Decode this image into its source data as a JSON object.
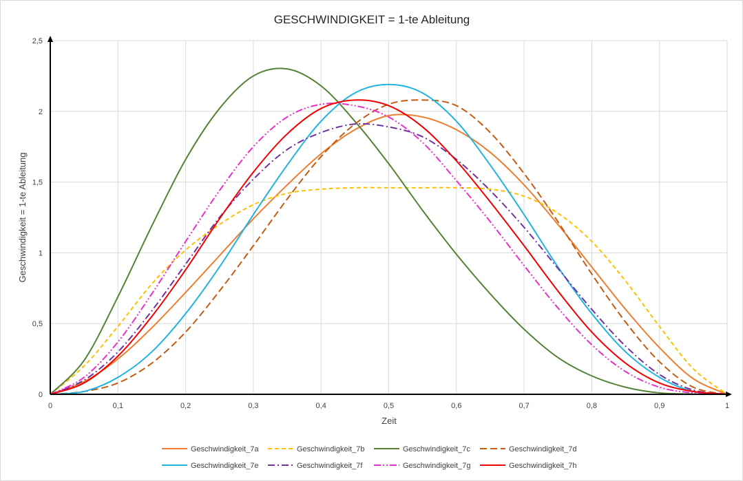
{
  "chart_data": {
    "type": "line",
    "title": "GESCHWINDIGKEIT = 1-te Ableitung",
    "xlabel": "Zeit",
    "ylabel": "Geschwindigkeit = 1-te Ableitung",
    "xlim": [
      0,
      1
    ],
    "ylim": [
      0,
      2.5
    ],
    "x_ticks": [
      0,
      0.1,
      0.2,
      0.3,
      0.4,
      0.5,
      0.6,
      0.7,
      0.8,
      0.9,
      1
    ],
    "x_tick_labels": [
      "0",
      "0,1",
      "0,2",
      "0,3",
      "0,4",
      "0,5",
      "0,6",
      "0,7",
      "0,8",
      "0,9",
      "1"
    ],
    "y_ticks": [
      0,
      0.5,
      1,
      1.5,
      2,
      2.5
    ],
    "y_tick_labels": [
      "0",
      "0,5",
      "1",
      "1,5",
      "2",
      "2,5"
    ],
    "grid": "vertical and horizontal",
    "legend": "bottom",
    "x": [
      0,
      0.05,
      0.1,
      0.15,
      0.2,
      0.25,
      0.3,
      0.35,
      0.4,
      0.45,
      0.5,
      0.55,
      0.6,
      0.65,
      0.7,
      0.75,
      0.8,
      0.85,
      0.9,
      0.95,
      1
    ],
    "series": [
      {
        "name": "Geschwindigkeit_7a",
        "color": "#ED7D31",
        "dash": "solid",
        "values": [
          0,
          0.09,
          0.25,
          0.47,
          0.72,
          0.98,
          1.24,
          1.48,
          1.7,
          1.87,
          1.97,
          1.96,
          1.87,
          1.71,
          1.48,
          1.2,
          0.9,
          0.6,
          0.33,
          0.11,
          0
        ]
      },
      {
        "name": "Geschwindigkeit_7b",
        "color": "#FFC000",
        "dash": "dash",
        "values": [
          0,
          0.2,
          0.48,
          0.78,
          1.02,
          1.2,
          1.34,
          1.42,
          1.45,
          1.46,
          1.46,
          1.46,
          1.46,
          1.45,
          1.4,
          1.28,
          1.08,
          0.8,
          0.48,
          0.18,
          0
        ]
      },
      {
        "name": "Geschwindigkeit_7c",
        "color": "#548235",
        "dash": "solid",
        "values": [
          0,
          0.24,
          0.69,
          1.19,
          1.66,
          2.02,
          2.25,
          2.3,
          2.18,
          1.93,
          1.63,
          1.3,
          0.99,
          0.71,
          0.46,
          0.26,
          0.13,
          0.05,
          0.01,
          0.002,
          0
        ]
      },
      {
        "name": "Geschwindigkeit_7d",
        "color": "#C55A11",
        "dash": "longdash",
        "values": [
          0,
          0.02,
          0.08,
          0.22,
          0.44,
          0.73,
          1.05,
          1.38,
          1.68,
          1.91,
          2.05,
          2.08,
          2.04,
          1.85,
          1.56,
          1.22,
          0.85,
          0.51,
          0.23,
          0.05,
          0
        ]
      },
      {
        "name": "Geschwindigkeit_7e",
        "color": "#1FB3E0",
        "dash": "solid",
        "values": [
          0,
          0.02,
          0.12,
          0.3,
          0.57,
          0.9,
          1.27,
          1.62,
          1.93,
          2.13,
          2.19,
          2.13,
          1.93,
          1.62,
          1.27,
          0.9,
          0.57,
          0.3,
          0.12,
          0.02,
          0
        ]
      },
      {
        "name": "Geschwindigkeit_7f",
        "color": "#7030A0",
        "dash": "dashdot",
        "values": [
          0,
          0.1,
          0.3,
          0.59,
          0.92,
          1.25,
          1.52,
          1.73,
          1.85,
          1.91,
          1.89,
          1.82,
          1.66,
          1.44,
          1.18,
          0.89,
          0.6,
          0.34,
          0.14,
          0.03,
          0
        ]
      },
      {
        "name": "Geschwindigkeit_7g",
        "color": "#E830C8",
        "dash": "dashdotdot",
        "values": [
          0,
          0.12,
          0.37,
          0.71,
          1.08,
          1.44,
          1.75,
          1.96,
          2.05,
          2.04,
          1.96,
          1.78,
          1.51,
          1.22,
          0.91,
          0.61,
          0.35,
          0.16,
          0.05,
          0.01,
          0
        ]
      },
      {
        "name": "Geschwindigkeit_7h",
        "color": "#F00000",
        "dash": "solid",
        "values": [
          0,
          0.08,
          0.27,
          0.55,
          0.88,
          1.24,
          1.57,
          1.84,
          2.02,
          2.08,
          2.04,
          1.89,
          1.65,
          1.36,
          1.05,
          0.73,
          0.44,
          0.22,
          0.08,
          0.02,
          0
        ]
      }
    ]
  }
}
